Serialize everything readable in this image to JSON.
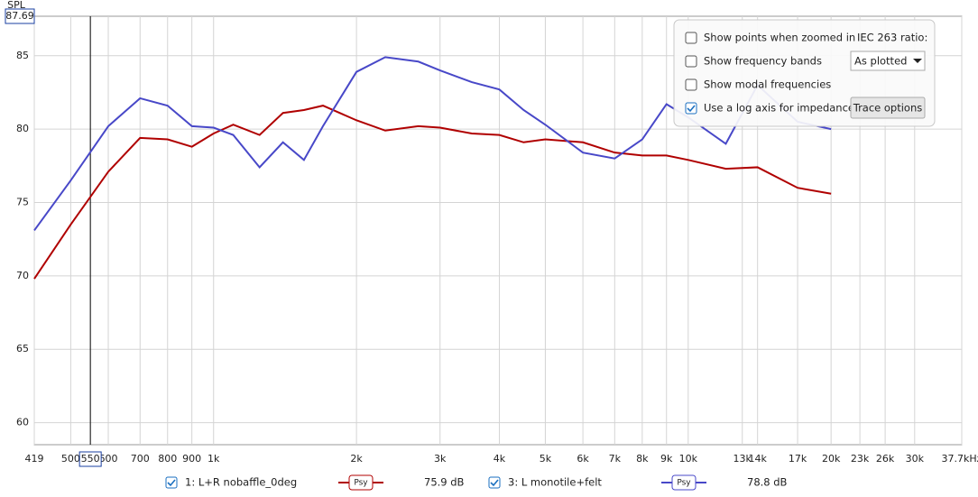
{
  "chart_data": {
    "type": "line",
    "y_label": "SPL",
    "cursor_y": 87.69,
    "cursor_x": 550,
    "x": [
      419,
      500,
      600,
      700,
      800,
      900,
      1000,
      1100,
      1250,
      1400,
      1550,
      1700,
      2000,
      2300,
      2700,
      3000,
      3500,
      4000,
      4500,
      5000,
      6000,
      7000,
      8000,
      9000,
      10000,
      12000,
      14000,
      17000,
      20000
    ],
    "series": [
      {
        "name": "1: L+R nobaffle_0deg",
        "color": "#b00000",
        "smoothing": "Psy",
        "readout": "75.9 dB",
        "values": [
          69.8,
          73.5,
          77.1,
          79.4,
          79.3,
          78.8,
          79.7,
          80.3,
          79.6,
          81.1,
          81.3,
          81.6,
          80.6,
          79.9,
          80.2,
          80.1,
          79.7,
          79.6,
          79.1,
          79.3,
          79.1,
          78.4,
          78.2,
          78.2,
          77.9,
          77.3,
          77.4,
          76.0,
          75.6
        ]
      },
      {
        "name": "3: L monotile+felt",
        "color": "#4848c8",
        "smoothing": "Psy",
        "readout": "78.8 dB",
        "values": [
          73.1,
          76.5,
          80.2,
          82.1,
          81.6,
          80.2,
          80.1,
          79.6,
          77.4,
          79.1,
          77.9,
          80.2,
          83.9,
          84.9,
          84.6,
          84.0,
          83.2,
          82.7,
          81.3,
          80.3,
          78.4,
          78.0,
          79.3,
          81.7,
          80.8,
          79.0,
          83.0,
          80.5,
          80.0
        ]
      }
    ],
    "xlim": [
      419,
      37700
    ],
    "log_x": true,
    "xticks": [
      419,
      500,
      600,
      700,
      800,
      900,
      {
        "value": 1000,
        "label": "1k"
      },
      {
        "value": 2000,
        "label": "2k"
      },
      {
        "value": 3000,
        "label": "3k"
      },
      {
        "value": 4000,
        "label": "4k"
      },
      {
        "value": 5000,
        "label": "5k"
      },
      {
        "value": 6000,
        "label": "6k"
      },
      {
        "value": 7000,
        "label": "7k"
      },
      {
        "value": 8000,
        "label": "8k"
      },
      {
        "value": 9000,
        "label": "9k"
      },
      {
        "value": 10000,
        "label": "10k"
      },
      {
        "value": 13000,
        "label": "13k"
      },
      {
        "value": 14000,
        "label": "14k"
      },
      {
        "value": 17000,
        "label": "17k"
      },
      {
        "value": 20000,
        "label": "20k"
      },
      {
        "value": 23000,
        "label": "23k"
      },
      {
        "value": 26000,
        "label": "26k"
      },
      {
        "value": 30000,
        "label": "30k"
      },
      {
        "value": 37700,
        "label": "37.7kHz"
      }
    ],
    "ylim": [
      58.5,
      87.69
    ],
    "yticks": [
      60,
      65,
      70,
      75,
      80,
      85
    ],
    "grid": true
  },
  "options_panel": {
    "items": [
      {
        "label": "Show points when zoomed in",
        "checked": false
      },
      {
        "label": "Show frequency bands",
        "checked": false
      },
      {
        "label": "Show modal frequencies",
        "checked": false
      },
      {
        "label": "Use a log axis for impedance",
        "checked": true
      }
    ],
    "iec_label": "IEC 263 ratio:",
    "iec_dropdown": "As plotted",
    "button": "Trace options"
  }
}
